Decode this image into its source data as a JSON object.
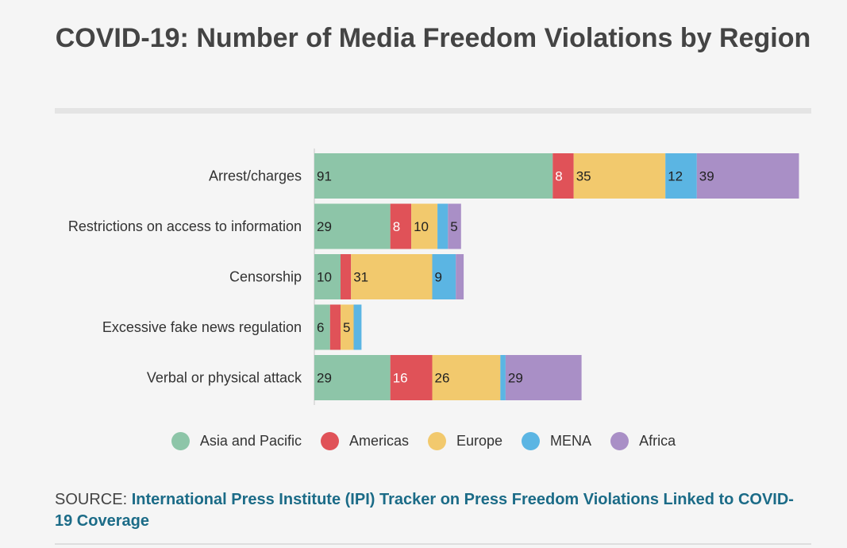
{
  "title": "COVID-19: Number of Media Freedom Violations by Region",
  "source": {
    "prefix": "SOURCE: ",
    "link_text": "International Press Institute (IPI) Tracker on Press Freedom Violations Linked to COVID-19 Coverage"
  },
  "chart_data": {
    "type": "bar",
    "orientation": "horizontal",
    "stacked": true,
    "title": "COVID-19: Number of Media Freedom Violations by Region",
    "categories": [
      "Arrest/charges",
      "Restrictions on access to information",
      "Censorship",
      "Excessive fake news regulation",
      "Verbal or physical attack"
    ],
    "series": [
      {
        "name": "Asia and Pacific",
        "color": "#8dc5a8",
        "label_color": "#222222",
        "values": [
          91,
          29,
          10,
          6,
          29
        ]
      },
      {
        "name": "Americas",
        "color": "#e05258",
        "label_color": "#ffffff",
        "values": [
          8,
          8,
          4,
          4,
          16
        ]
      },
      {
        "name": "Europe",
        "color": "#f2c96d",
        "label_color": "#222222",
        "values": [
          35,
          10,
          31,
          5,
          26
        ]
      },
      {
        "name": "MENA",
        "color": "#5bb5e3",
        "label_color": "#222222",
        "values": [
          12,
          4,
          9,
          3,
          2
        ]
      },
      {
        "name": "Africa",
        "color": "#a98fc6",
        "label_color": "#222222",
        "values": [
          39,
          5,
          3,
          0,
          29
        ]
      }
    ],
    "legend_position": "bottom",
    "grid": false
  }
}
